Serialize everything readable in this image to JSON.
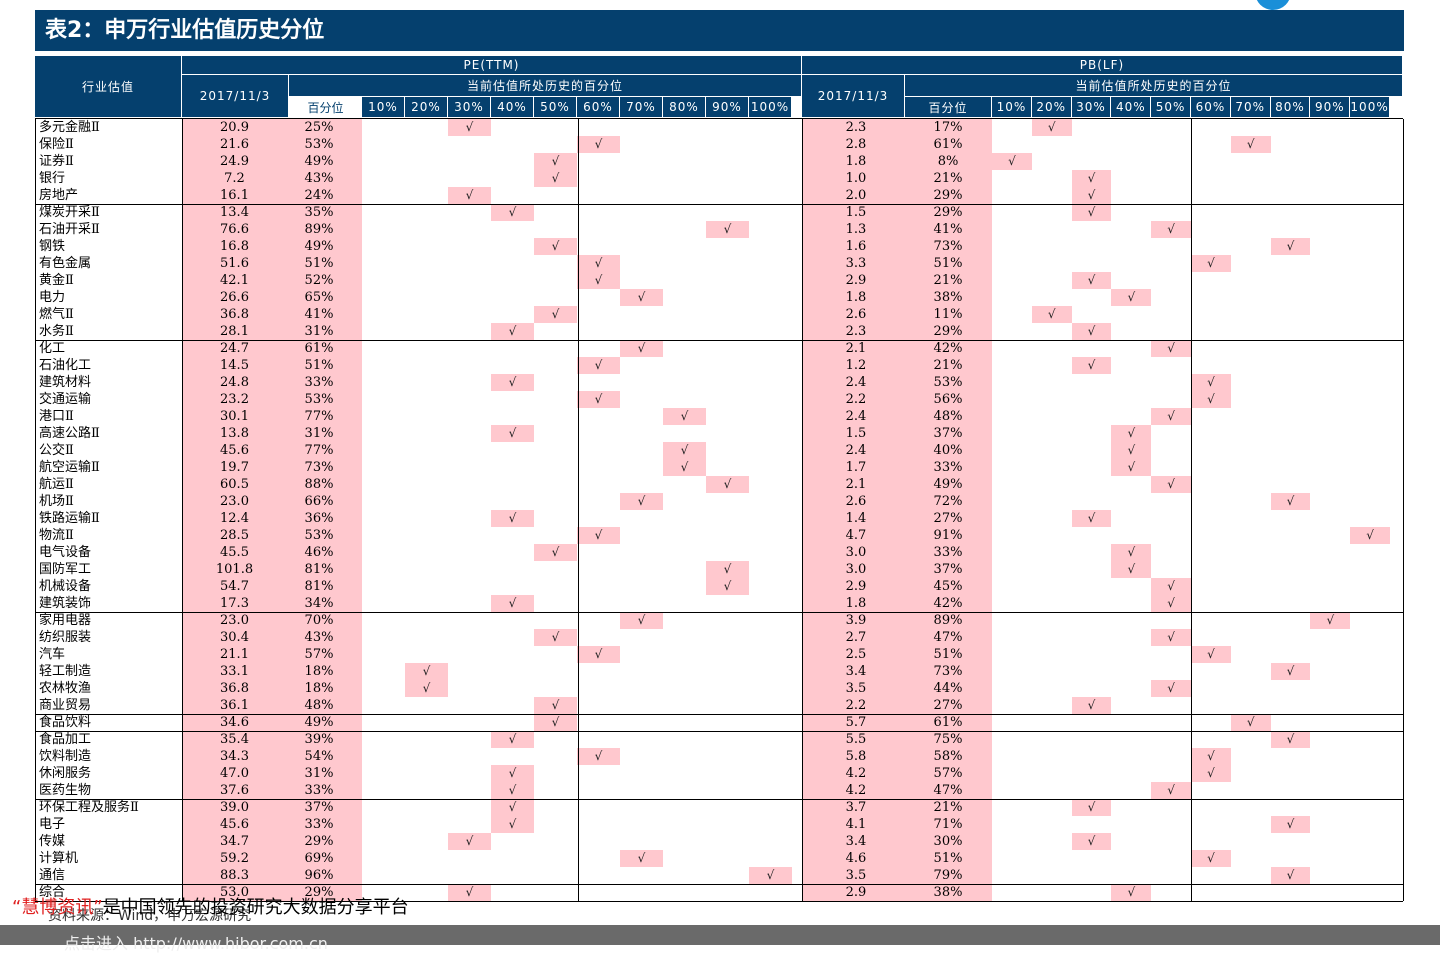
{
  "title": "表2：申万行业估值历史分位",
  "header": {
    "industry": "行业估值",
    "pe_group": "PE(TTM)",
    "pb_group": "PB(LF)",
    "date": "2017/11/3",
    "pct_label": "当前估值所处历史的百分位",
    "pct_col": "百分位",
    "buckets": [
      "10%",
      "20%",
      "30%",
      "40%",
      "50%",
      "60%",
      "70%",
      "80%",
      "90%",
      "100%"
    ]
  },
  "check": "√",
  "colors": {
    "header_bg": "#05406e",
    "highlight": "#ffc8ce"
  },
  "rows": [
    [
      "多元金融Ⅱ",
      "20.9",
      "25%",
      "2.3",
      "17%"
    ],
    [
      "保险Ⅱ",
      "21.6",
      "53%",
      "2.8",
      "61%"
    ],
    [
      "证券Ⅱ",
      "24.9",
      "49%",
      "1.8",
      "8%"
    ],
    [
      "银行",
      "7.2",
      "43%",
      "1.0",
      "21%"
    ],
    [
      "房地产",
      "16.1",
      "24%",
      "2.0",
      "29%"
    ],
    [
      "煤炭开采Ⅱ",
      "13.4",
      "35%",
      "1.5",
      "29%"
    ],
    [
      "石油开采Ⅱ",
      "76.6",
      "89%",
      "1.3",
      "41%"
    ],
    [
      "钢铁",
      "16.8",
      "49%",
      "1.6",
      "73%"
    ],
    [
      "有色金属",
      "51.6",
      "51%",
      "3.3",
      "51%"
    ],
    [
      "黄金Ⅱ",
      "42.1",
      "52%",
      "2.9",
      "21%"
    ],
    [
      "电力",
      "26.6",
      "65%",
      "1.8",
      "38%"
    ],
    [
      "燃气Ⅱ",
      "36.8",
      "41%",
      "2.6",
      "11%"
    ],
    [
      "水务Ⅱ",
      "28.1",
      "31%",
      "2.3",
      "29%"
    ],
    [
      "化工",
      "24.7",
      "61%",
      "2.1",
      "42%"
    ],
    [
      "石油化工",
      "14.5",
      "51%",
      "1.2",
      "21%"
    ],
    [
      "建筑材料",
      "24.8",
      "33%",
      "2.4",
      "53%"
    ],
    [
      "交通运输",
      "23.2",
      "53%",
      "2.2",
      "56%"
    ],
    [
      "港口Ⅱ",
      "30.1",
      "77%",
      "2.4",
      "48%"
    ],
    [
      "高速公路Ⅱ",
      "13.8",
      "31%",
      "1.5",
      "37%"
    ],
    [
      "公交Ⅱ",
      "45.6",
      "77%",
      "2.4",
      "40%"
    ],
    [
      "航空运输Ⅱ",
      "19.7",
      "73%",
      "1.7",
      "33%"
    ],
    [
      "航运Ⅱ",
      "60.5",
      "88%",
      "2.1",
      "49%"
    ],
    [
      "机场Ⅱ",
      "23.0",
      "66%",
      "2.6",
      "72%"
    ],
    [
      "铁路运输Ⅱ",
      "12.4",
      "36%",
      "1.4",
      "27%"
    ],
    [
      "物流Ⅱ",
      "28.5",
      "53%",
      "4.7",
      "91%"
    ],
    [
      "电气设备",
      "45.5",
      "46%",
      "3.0",
      "33%"
    ],
    [
      "国防军工",
      "101.8",
      "81%",
      "3.0",
      "37%"
    ],
    [
      "机械设备",
      "54.7",
      "81%",
      "2.9",
      "45%"
    ],
    [
      "建筑装饰",
      "17.3",
      "34%",
      "1.8",
      "42%"
    ],
    [
      "家用电器",
      "23.0",
      "70%",
      "3.9",
      "89%"
    ],
    [
      "纺织服装",
      "30.4",
      "43%",
      "2.7",
      "47%"
    ],
    [
      "汽车",
      "21.1",
      "57%",
      "2.5",
      "51%"
    ],
    [
      "轻工制造",
      "33.1",
      "18%",
      "3.4",
      "73%"
    ],
    [
      "农林牧渔",
      "36.8",
      "18%",
      "3.5",
      "44%"
    ],
    [
      "商业贸易",
      "36.1",
      "48%",
      "2.2",
      "27%"
    ],
    [
      "食品饮料",
      "34.6",
      "49%",
      "5.7",
      "61%"
    ],
    [
      "食品加工",
      "35.4",
      "39%",
      "5.5",
      "75%"
    ],
    [
      "饮料制造",
      "34.3",
      "54%",
      "5.8",
      "58%"
    ],
    [
      "休闲服务",
      "47.0",
      "31%",
      "4.2",
      "57%"
    ],
    [
      "医药生物",
      "37.6",
      "33%",
      "4.2",
      "47%"
    ],
    [
      "环保工程及服务Ⅱ",
      "39.0",
      "37%",
      "3.7",
      "21%"
    ],
    [
      "电子",
      "45.6",
      "33%",
      "4.1",
      "71%"
    ],
    [
      "传媒",
      "34.7",
      "29%",
      "3.4",
      "30%"
    ],
    [
      "计算机",
      "59.2",
      "69%",
      "4.6",
      "51%"
    ],
    [
      "通信",
      "88.3",
      "96%",
      "3.5",
      "79%"
    ],
    [
      "综合",
      "53.0",
      "29%",
      "2.9",
      "38%"
    ]
  ],
  "source": "资料来源：Wind，申万宏源研究",
  "promo_brand": "“慧博资讯”",
  "promo_text": "是中国领先的投资研究大数据分享平台",
  "bottom_text": "点击进入 http://www.hibor.com.cn"
}
